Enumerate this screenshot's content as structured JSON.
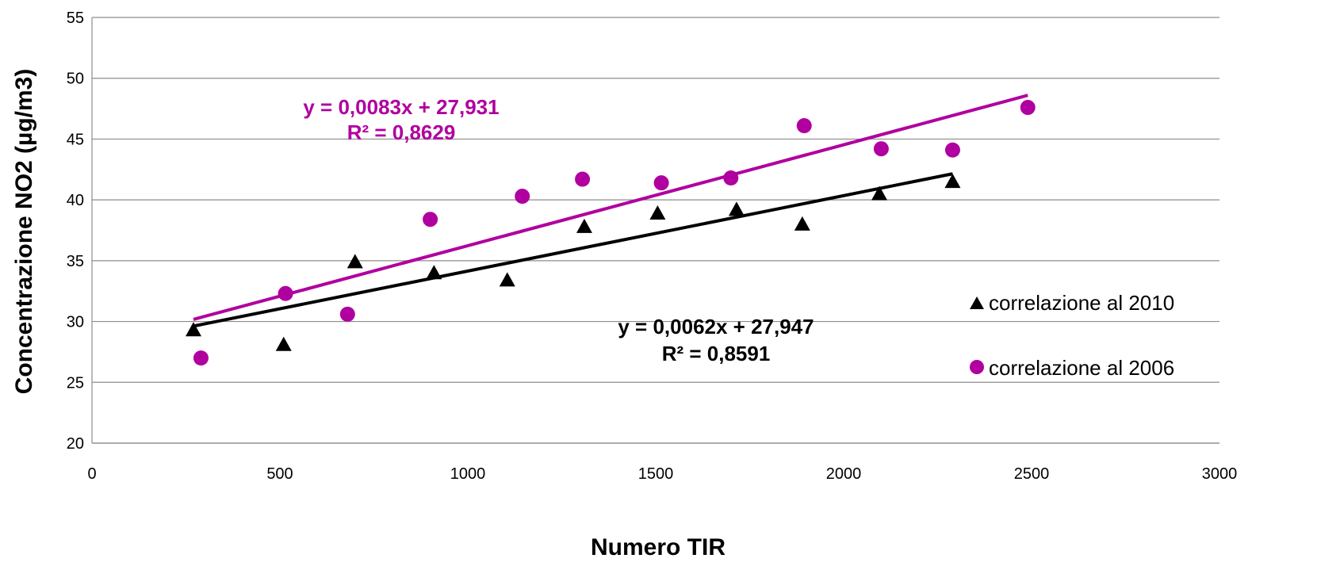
{
  "chart_data": {
    "type": "scatter",
    "title": "",
    "xlabel": "Numero TIR",
    "ylabel": "Concentrazione NO2 (µg/m3)",
    "xlim": [
      0,
      3000
    ],
    "ylim": [
      20,
      55
    ],
    "xticks": [
      0,
      500,
      1000,
      1500,
      2000,
      2500,
      3000
    ],
    "yticks": [
      20,
      25,
      30,
      35,
      40,
      45,
      50,
      55
    ],
    "grid": "horizontal",
    "legend_position": "right",
    "series": [
      {
        "name": "correlazione al 2010",
        "marker": "triangle",
        "color": "#000000",
        "points": [
          {
            "x": 270,
            "y": 29.3
          },
          {
            "x": 510,
            "y": 28.1
          },
          {
            "x": 700,
            "y": 34.9
          },
          {
            "x": 910,
            "y": 34.0
          },
          {
            "x": 1105,
            "y": 33.4
          },
          {
            "x": 1310,
            "y": 37.8
          },
          {
            "x": 1505,
            "y": 38.9
          },
          {
            "x": 1715,
            "y": 39.2
          },
          {
            "x": 1890,
            "y": 38.0
          },
          {
            "x": 2095,
            "y": 40.5
          },
          {
            "x": 2290,
            "y": 41.5
          }
        ],
        "trendline": {
          "slope": 0.0062,
          "intercept": 27.947,
          "x_range": [
            270,
            2290
          ],
          "equation": "y = 0,0062x + 27,947",
          "r2": "R² = 0,8591"
        }
      },
      {
        "name": "correlazione al 2006",
        "marker": "circle",
        "color": "#b0009f",
        "points": [
          {
            "x": 290,
            "y": 27.0
          },
          {
            "x": 515,
            "y": 32.3
          },
          {
            "x": 680,
            "y": 30.6
          },
          {
            "x": 900,
            "y": 38.4
          },
          {
            "x": 1145,
            "y": 40.3
          },
          {
            "x": 1305,
            "y": 41.7
          },
          {
            "x": 1515,
            "y": 41.4
          },
          {
            "x": 1700,
            "y": 41.8
          },
          {
            "x": 1895,
            "y": 46.1
          },
          {
            "x": 2100,
            "y": 44.2
          },
          {
            "x": 2290,
            "y": 44.1
          },
          {
            "x": 2490,
            "y": 47.6
          }
        ],
        "trendline": {
          "slope": 0.0083,
          "intercept": 27.931,
          "x_range": [
            270,
            2490
          ],
          "equation": "y = 0,0083x + 27,931",
          "r2": "R² = 0,8629"
        }
      }
    ]
  }
}
